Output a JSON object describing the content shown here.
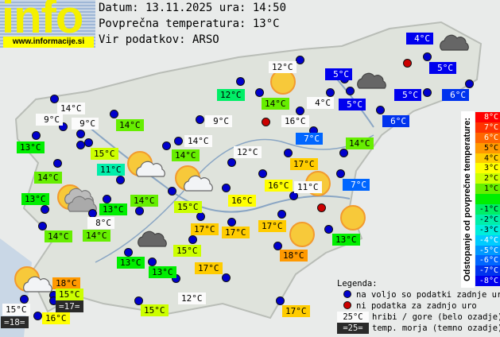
{
  "logo": {
    "word": "info",
    "url": "www.informacije.si"
  },
  "header": {
    "date_line": "Datum: 13.11.2025 ura: 14:50",
    "avg_line": "Povprečna temperatura: 13°C",
    "source_line": "Vir podatkov: ARSO"
  },
  "average_temperature": 13,
  "stations": [
    {
      "t": "14°C",
      "type": "mountain"
    },
    {
      "t": "9°C",
      "type": "mountain"
    },
    {
      "t": "9°C",
      "type": "mountain"
    },
    {
      "t": "13°C",
      "type": "valley"
    },
    {
      "t": "14°C",
      "type": "valley"
    },
    {
      "t": "12°C",
      "type": "valley"
    },
    {
      "t": "9°C",
      "type": "mountain"
    },
    {
      "t": "15°C",
      "type": "valley"
    },
    {
      "t": "14°C",
      "type": "mountain"
    },
    {
      "t": "14°C",
      "type": "valley"
    },
    {
      "t": "12°C",
      "type": "mountain"
    },
    {
      "t": "11°C",
      "type": "valley"
    },
    {
      "t": "14°C",
      "type": "valley"
    },
    {
      "t": "13°C",
      "type": "valley"
    },
    {
      "t": "14°C",
      "type": "valley"
    },
    {
      "t": "15°C",
      "type": "valley"
    },
    {
      "t": "16°C",
      "type": "valley"
    },
    {
      "t": "13°C",
      "type": "valley"
    },
    {
      "t": "8°C",
      "type": "mountain"
    },
    {
      "t": "14°C",
      "type": "valley"
    },
    {
      "t": "14°C",
      "type": "valley"
    },
    {
      "t": "17°C",
      "type": "valley"
    },
    {
      "t": "17°C",
      "type": "valley"
    },
    {
      "t": "17°C",
      "type": "valley"
    },
    {
      "t": "15°C",
      "type": "valley"
    },
    {
      "t": "13°C",
      "type": "valley"
    },
    {
      "t": "13°C",
      "type": "valley"
    },
    {
      "t": "17°C",
      "type": "valley"
    },
    {
      "t": "18°C",
      "type": "valley"
    },
    {
      "t": "13°C",
      "type": "valley"
    },
    {
      "t": "18°C",
      "type": "valley"
    },
    {
      "t": "15°C",
      "type": "valley"
    },
    {
      "t": "=17=",
      "type": "sea"
    },
    {
      "t": "15°C",
      "type": "mountain"
    },
    {
      "t": "=18=",
      "type": "sea"
    },
    {
      "t": "16°C",
      "type": "valley"
    },
    {
      "t": "12°C",
      "type": "mountain"
    },
    {
      "t": "15°C",
      "type": "valley"
    },
    {
      "t": "17°C",
      "type": "valley"
    },
    {
      "t": "12°C",
      "type": "mountain"
    },
    {
      "t": "14°C",
      "type": "valley"
    },
    {
      "t": "4°C",
      "type": "mountain"
    },
    {
      "t": "5°C",
      "type": "valley"
    },
    {
      "t": "5°C",
      "type": "valley"
    },
    {
      "t": "16°C",
      "type": "mountain"
    },
    {
      "t": "7°C",
      "type": "valley"
    },
    {
      "t": "14°C",
      "type": "valley"
    },
    {
      "t": "17°C",
      "type": "valley"
    },
    {
      "t": "16°C",
      "type": "valley"
    },
    {
      "t": "11°C",
      "type": "mountain"
    },
    {
      "t": "7°C",
      "type": "valley"
    },
    {
      "t": "5°C",
      "type": "valley"
    },
    {
      "t": "5°C",
      "type": "valley"
    },
    {
      "t": "6°C",
      "type": "valley"
    },
    {
      "t": "6°C",
      "type": "valley"
    },
    {
      "t": "4°C",
      "type": "valley"
    }
  ],
  "marker_colors": {
    "ok": "#0000cc",
    "missing": "#cc0000"
  },
  "weather_icons": [
    "sun",
    "sun-cloud",
    "sun-cloud",
    "sun",
    "sun-cloud-grey",
    "sun",
    "sun",
    "dark-cloud",
    "dark-cloud",
    "dark-cloud",
    "sun-cloud"
  ],
  "scale": {
    "title": "Odstopanje od povprečne temperature:",
    "steps": [
      {
        "label": "8°C",
        "color": "#ff0000"
      },
      {
        "label": "7°C",
        "color": "#ff3300"
      },
      {
        "label": "6°C",
        "color": "#ff6600"
      },
      {
        "label": "5°C",
        "color": "#ff9900"
      },
      {
        "label": "4°C",
        "color": "#ffcc00"
      },
      {
        "label": "3°C",
        "color": "#ffff00"
      },
      {
        "label": "2°C",
        "color": "#ccff00"
      },
      {
        "label": "1°C",
        "color": "#66ee00"
      },
      {
        "label": "",
        "color": "#00ee00"
      },
      {
        "label": "-1°C",
        "color": "#00ee66"
      },
      {
        "label": "-2°C",
        "color": "#00eeaa"
      },
      {
        "label": "-3°C",
        "color": "#00eedd"
      },
      {
        "label": "-4°C",
        "color": "#00ccff"
      },
      {
        "label": "-5°C",
        "color": "#0099ff"
      },
      {
        "label": "-6°C",
        "color": "#0066ff"
      },
      {
        "label": "-7°C",
        "color": "#0033ee"
      },
      {
        "label": "-8°C",
        "color": "#0000ee"
      }
    ]
  },
  "legend": {
    "title": "Legenda:",
    "ok": "na voljo so podatki zadnje ure",
    "missing": "ni podatka za zadnjo uro",
    "mountain_sample": "25°C",
    "mountain": "hribi / gore (belo ozadje)",
    "sea_sample": "=25=",
    "sea": "temp. morja (temno ozadje)"
  }
}
